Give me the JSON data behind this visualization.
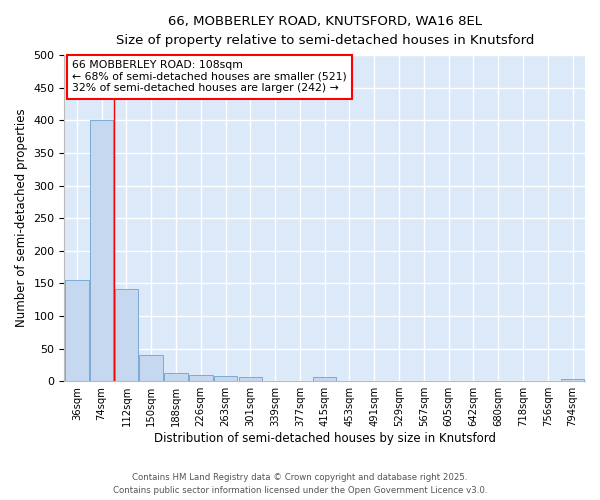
{
  "title_line1": "66, MOBBERLEY ROAD, KNUTSFORD, WA16 8EL",
  "title_line2": "Size of property relative to semi-detached houses in Knutsford",
  "xlabel": "Distribution of semi-detached houses by size in Knutsford",
  "ylabel": "Number of semi-detached properties",
  "categories": [
    "36sqm",
    "74sqm",
    "112sqm",
    "150sqm",
    "188sqm",
    "226sqm",
    "263sqm",
    "301sqm",
    "339sqm",
    "377sqm",
    "415sqm",
    "453sqm",
    "491sqm",
    "529sqm",
    "567sqm",
    "605sqm",
    "642sqm",
    "680sqm",
    "718sqm",
    "756sqm",
    "794sqm"
  ],
  "values": [
    155,
    400,
    142,
    40,
    12,
    10,
    8,
    7,
    0,
    0,
    6,
    0,
    0,
    0,
    0,
    0,
    0,
    0,
    0,
    0,
    3
  ],
  "bar_color": "#c5d8f0",
  "bar_edge_color": "#7aaad4",
  "red_line_index": 1.5,
  "annotation_title": "66 MOBBERLEY ROAD: 108sqm",
  "annotation_line1": "← 68% of semi-detached houses are smaller (521)",
  "annotation_line2": "32% of semi-detached houses are larger (242) →",
  "annotation_box_color": "white",
  "annotation_box_edge": "red",
  "footer_line1": "Contains HM Land Registry data © Crown copyright and database right 2025.",
  "footer_line2": "Contains public sector information licensed under the Open Government Licence v3.0.",
  "ylim": [
    0,
    500
  ],
  "yticks": [
    0,
    50,
    100,
    150,
    200,
    250,
    300,
    350,
    400,
    450,
    500
  ],
  "background_color": "#dce9f8",
  "grid_color": "white",
  "title_fontsize": 11,
  "subtitle_fontsize": 9
}
